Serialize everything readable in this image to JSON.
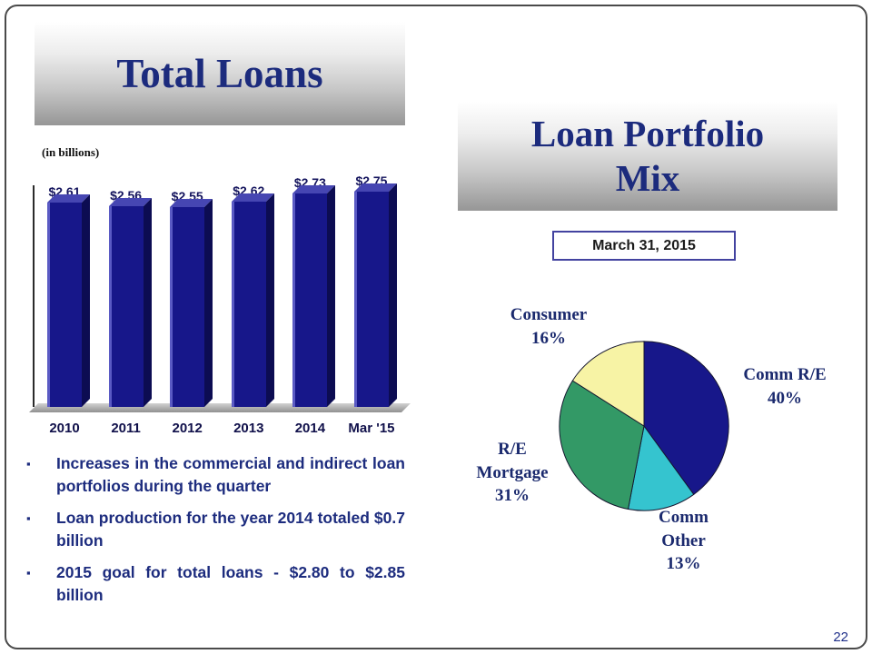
{
  "slide": {
    "page_number": "22"
  },
  "left": {
    "title": "Total Loans",
    "units_label": "(in billions)",
    "bullets": [
      "Increases in the commercial and indirect loan portfolios during the quarter",
      "Loan production for the year 2014 totaled $0.7 billion",
      "2015 goal for total loans - $2.80 to $2.85 billion"
    ]
  },
  "right": {
    "title_lines": [
      "Loan Portfolio",
      "Mix"
    ],
    "date_label": "March 31, 2015",
    "pie_labels": {
      "consumer": {
        "lines": [
          "Consumer",
          "16%"
        ]
      },
      "comm_re": {
        "lines": [
          "Comm R/E",
          "40%"
        ]
      },
      "re_mortgage": {
        "lines": [
          "R/E",
          "Mortgage",
          "31%"
        ]
      },
      "comm_other": {
        "lines": [
          "Comm",
          "Other",
          "13%"
        ]
      }
    }
  },
  "colors": {
    "navy": "#17178a",
    "title_text": "#1c2b7d",
    "pie_cyan": "#35c4cf",
    "pie_green": "#339966",
    "pie_yellow": "#f7f3a5"
  },
  "chart_data": [
    {
      "type": "bar",
      "title": "Total Loans",
      "subtitle": "(in billions)",
      "categories": [
        "2010",
        "2011",
        "2012",
        "2013",
        "2014",
        "Mar '15"
      ],
      "values": [
        2.61,
        2.56,
        2.55,
        2.62,
        2.73,
        2.75
      ],
      "labels": [
        "$2.61",
        "$2.56",
        "$2.55",
        "$2.62",
        "$2.73",
        "$2.75"
      ],
      "xlabel": "",
      "ylabel": "Total loans (in billions)",
      "ylim": [
        0,
        2.9
      ],
      "grid": false,
      "legend": false,
      "bar_color": "#17178a"
    },
    {
      "type": "pie",
      "title": "Loan Portfolio Mix",
      "as_of": "March 31, 2015",
      "slices": [
        {
          "label": "Comm R/E",
          "pct": 40,
          "color": "#17178a"
        },
        {
          "label": "Comm Other",
          "pct": 13,
          "color": "#35c4cf"
        },
        {
          "label": "R/E Mortgage",
          "pct": 31,
          "color": "#339966"
        },
        {
          "label": "Consumer",
          "pct": 16,
          "color": "#f7f3a5"
        }
      ],
      "start": "top",
      "direction": "clockwise"
    }
  ]
}
